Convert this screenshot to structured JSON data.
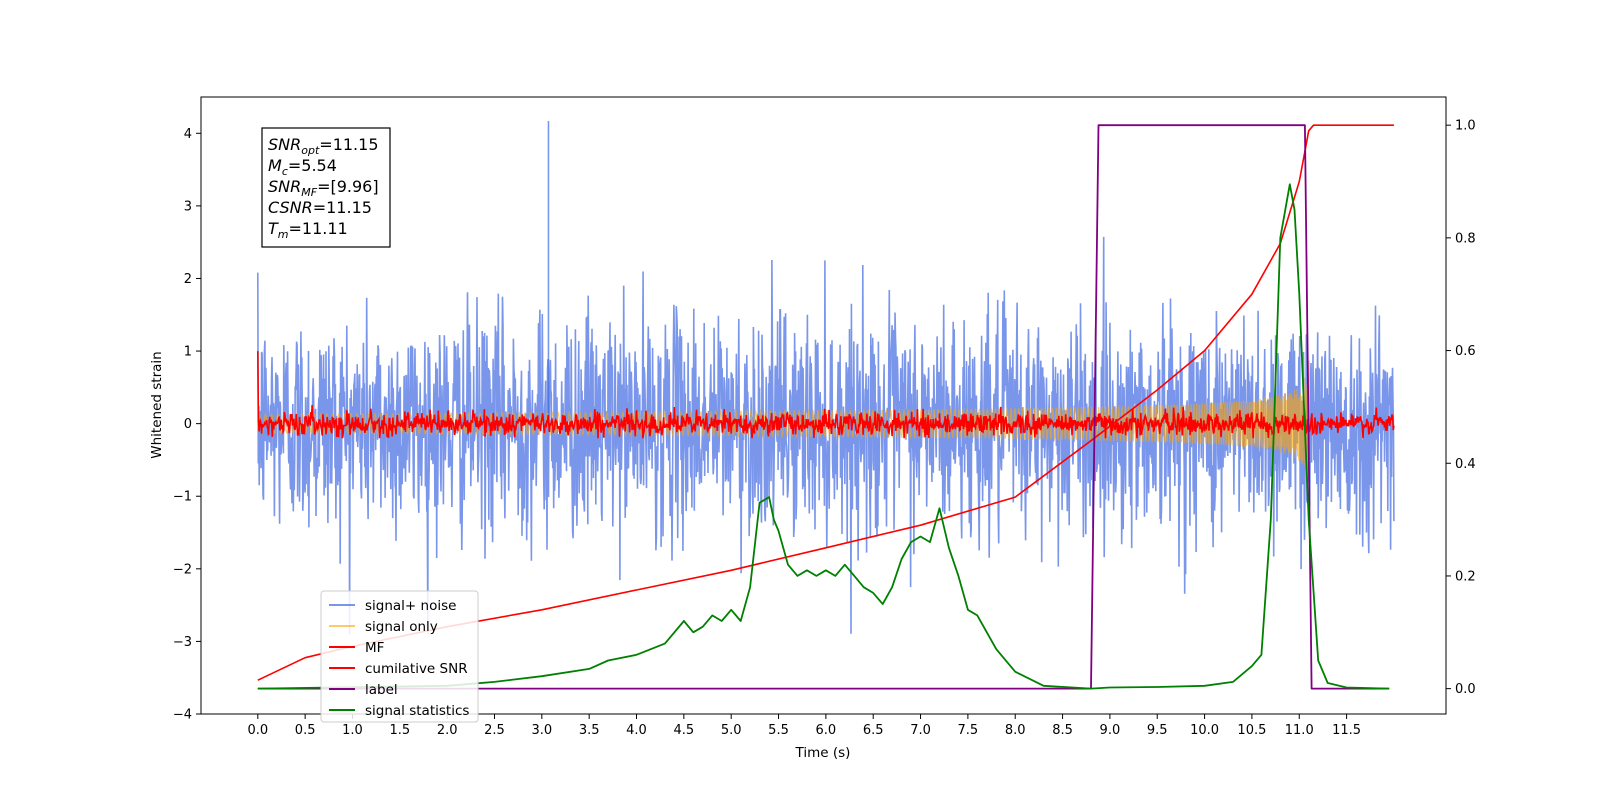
{
  "chart_data": {
    "type": "line",
    "title": "",
    "xlabel": "Time (s)",
    "ylabel": "Whitened strain",
    "xlim": [
      -0.6,
      12.55
    ],
    "ylim": [
      -4.0,
      4.5
    ],
    "ylim_right": [
      -0.045,
      1.05
    ],
    "x_ticks": [
      "0.0",
      "0.5",
      "1.0",
      "1.5",
      "2.0",
      "2.5",
      "3.0",
      "3.5",
      "4.0",
      "4.5",
      "5.0",
      "5.5",
      "6.0",
      "6.5",
      "7.0",
      "7.5",
      "8.0",
      "8.5",
      "9.0",
      "9.5",
      "10.0",
      "10.5",
      "11.0",
      "11.5"
    ],
    "y_ticks_left": [
      "−4",
      "−3",
      "−2",
      "−1",
      "0",
      "1",
      "2",
      "3",
      "4"
    ],
    "y_ticks_right": [
      "0.0",
      "0.2",
      "0.4",
      "0.6",
      "0.8",
      "1.0"
    ],
    "grid": false,
    "legend_position": "lower-left",
    "info_box": {
      "lines": [
        {
          "sym": "SNR",
          "sub": "opt",
          "value": "=11.15"
        },
        {
          "sym": "M",
          "sub": "c",
          "value": "=5.54"
        },
        {
          "sym": "SNR",
          "sub": "MF",
          "value": "=[9.96]"
        },
        {
          "sym": "CSNR",
          "sub": "",
          "value": "=11.15"
        },
        {
          "sym": "T",
          "sub": "m",
          "value": "=11.11"
        }
      ]
    },
    "series": [
      {
        "name": "signal+ noise",
        "color": "#4169e1",
        "axis": "left",
        "kind": "noise",
        "std": 0.75,
        "peak": 4.17,
        "x_range": [
          0.0,
          12.0
        ]
      },
      {
        "name": "signal only",
        "color": "#ffa500",
        "axis": "left",
        "kind": "chirp",
        "merger_time": 11.11,
        "max_amplitude": 1.05
      },
      {
        "name": "MF",
        "color": "#ff0000",
        "axis": "left",
        "kind": "noise",
        "std": 0.08,
        "start_value": 1.0,
        "x_range": [
          0.0,
          12.0
        ]
      },
      {
        "name": "cumilative SNR",
        "color": "#ff0000",
        "axis": "right",
        "x": [
          0.0,
          0.5,
          1.0,
          2.0,
          3.0,
          4.0,
          5.0,
          6.0,
          7.0,
          8.0,
          8.8,
          9.5,
          10.0,
          10.5,
          10.8,
          11.0,
          11.1,
          11.15,
          12.0
        ],
        "y": [
          0.015,
          0.055,
          0.075,
          0.11,
          0.14,
          0.175,
          0.21,
          0.25,
          0.29,
          0.34,
          0.44,
          0.53,
          0.6,
          0.7,
          0.79,
          0.9,
          0.99,
          1.0,
          1.0
        ]
      },
      {
        "name": "label",
        "color": "#800080",
        "axis": "right",
        "x": [
          0.0,
          8.8,
          8.88,
          11.06,
          11.13,
          11.95
        ],
        "y": [
          0.0,
          0.0,
          1.0,
          1.0,
          0.0,
          0.0
        ]
      },
      {
        "name": "signal statistics",
        "color": "#008000",
        "axis": "right",
        "x": [
          0.0,
          2.0,
          2.5,
          3.0,
          3.5,
          3.7,
          4.0,
          4.3,
          4.5,
          4.6,
          4.7,
          4.8,
          4.9,
          5.0,
          5.1,
          5.2,
          5.3,
          5.4,
          5.45,
          5.5,
          5.6,
          5.7,
          5.8,
          5.9,
          6.0,
          6.1,
          6.2,
          6.3,
          6.4,
          6.5,
          6.6,
          6.7,
          6.8,
          6.9,
          7.0,
          7.1,
          7.2,
          7.3,
          7.4,
          7.5,
          7.6,
          7.8,
          8.0,
          8.3,
          8.8,
          9.0,
          9.5,
          10.0,
          10.3,
          10.5,
          10.6,
          10.7,
          10.8,
          10.9,
          10.95,
          11.0,
          11.1,
          11.2,
          11.3,
          11.5,
          11.95
        ],
        "y": [
          0.0,
          0.005,
          0.012,
          0.022,
          0.035,
          0.05,
          0.06,
          0.08,
          0.12,
          0.1,
          0.11,
          0.13,
          0.12,
          0.14,
          0.12,
          0.18,
          0.33,
          0.34,
          0.3,
          0.28,
          0.22,
          0.2,
          0.21,
          0.2,
          0.21,
          0.2,
          0.22,
          0.2,
          0.18,
          0.17,
          0.15,
          0.18,
          0.23,
          0.26,
          0.27,
          0.26,
          0.32,
          0.25,
          0.2,
          0.14,
          0.13,
          0.07,
          0.03,
          0.005,
          0.0,
          0.002,
          0.003,
          0.005,
          0.012,
          0.04,
          0.06,
          0.3,
          0.8,
          0.895,
          0.85,
          0.7,
          0.3,
          0.05,
          0.01,
          0.002,
          0.0
        ]
      }
    ]
  }
}
